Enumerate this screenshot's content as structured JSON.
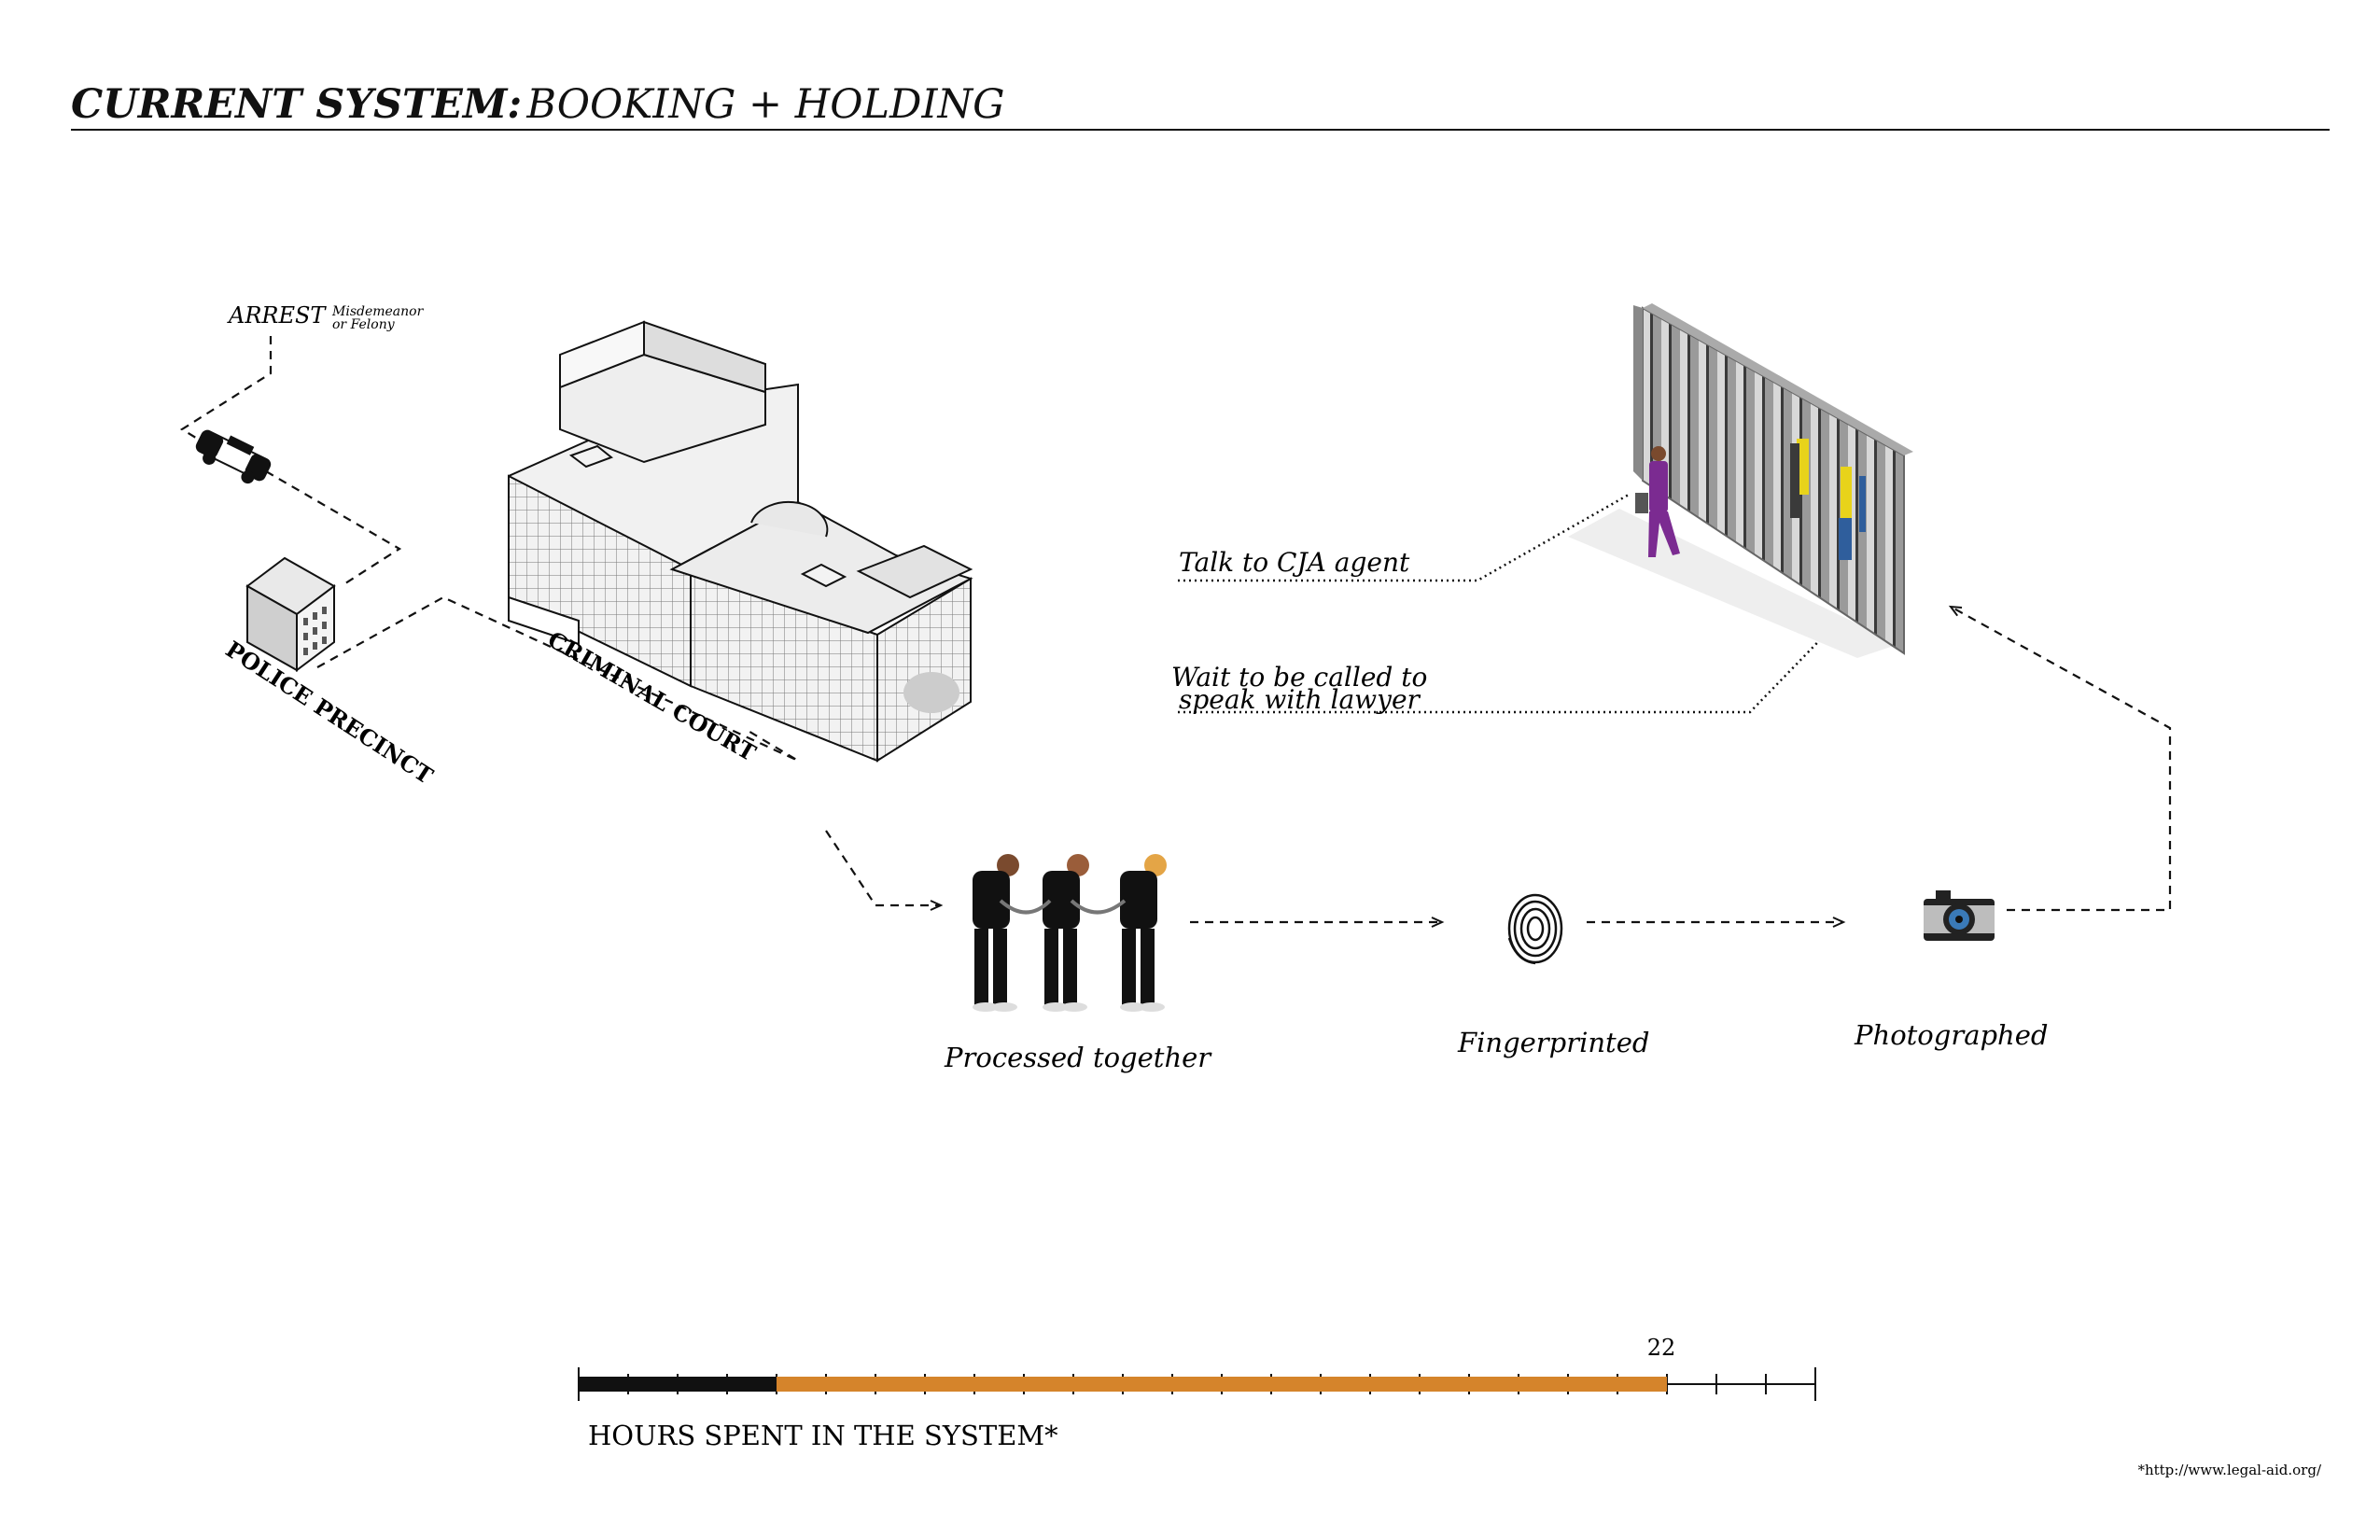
{
  "title": {
    "main": "CURRENT SYSTEM:",
    "sub": "BOOKING + HOLDING"
  },
  "labels": {
    "arrest": "ARREST",
    "arrest_note_1": "Misdemeanor",
    "arrest_note_2": "or Felony",
    "police_precinct": "POLICE PRECINCT",
    "criminal_court": "CRIMINAL COURT",
    "talk_cja": "Talk to CJA agent",
    "wait_line_1": "Wait to be called to",
    "wait_line_2": "speak with lawyer",
    "processed": "Processed together",
    "fingerprinted": "Fingerprinted",
    "photographed": "Photographed"
  },
  "timeline": {
    "label": "HOURS SPENT IN THE SYSTEM*",
    "hours_marker": "22",
    "hours_spent": 22,
    "total_hours": 25,
    "black_hours": 4,
    "colors": {
      "black": "#111111",
      "orange": "#d5842b"
    }
  },
  "footnote": "*http://www.legal-aid.org/",
  "icons": [
    "police-car-icon",
    "police-precinct-building-icon",
    "criminal-court-building-icon",
    "holding-cell-icon",
    "handcuffed-people-icon",
    "fingerprint-icon",
    "camera-icon"
  ]
}
